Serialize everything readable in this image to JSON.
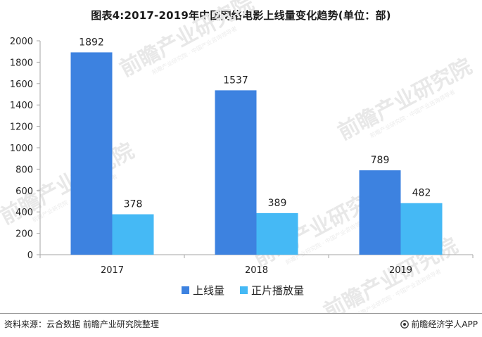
{
  "title": "图表4:2017-2019年中国网络电影上线量变化趋势(单位：部)",
  "colors": {
    "series_1": "#3d82e0",
    "series_2": "#45b9f5",
    "axis": "#a6a6a6",
    "text": "#222222"
  },
  "watermark": {
    "text": "前瞻产业研究院",
    "sub": "前瞻产业研究院 · 中国产业咨询领导者"
  },
  "chart_data": {
    "type": "bar",
    "categories": [
      "2017",
      "2018",
      "2019"
    ],
    "series": [
      {
        "name": "上线量",
        "values": [
          1892,
          1537,
          789
        ]
      },
      {
        "name": "正片播放量",
        "values": [
          378,
          389,
          482
        ]
      }
    ],
    "y_ticks": [
      "0",
      "200",
      "400",
      "600",
      "800",
      "1000",
      "1200",
      "1400",
      "1600",
      "1800",
      "2000"
    ],
    "ylim": [
      0,
      2000
    ],
    "grid": false,
    "legend_position": "bottom-center"
  },
  "footer": {
    "source": "资料来源：云合数据 前瞻产业研究院整理",
    "brand": "前瞻经济学人APP"
  }
}
